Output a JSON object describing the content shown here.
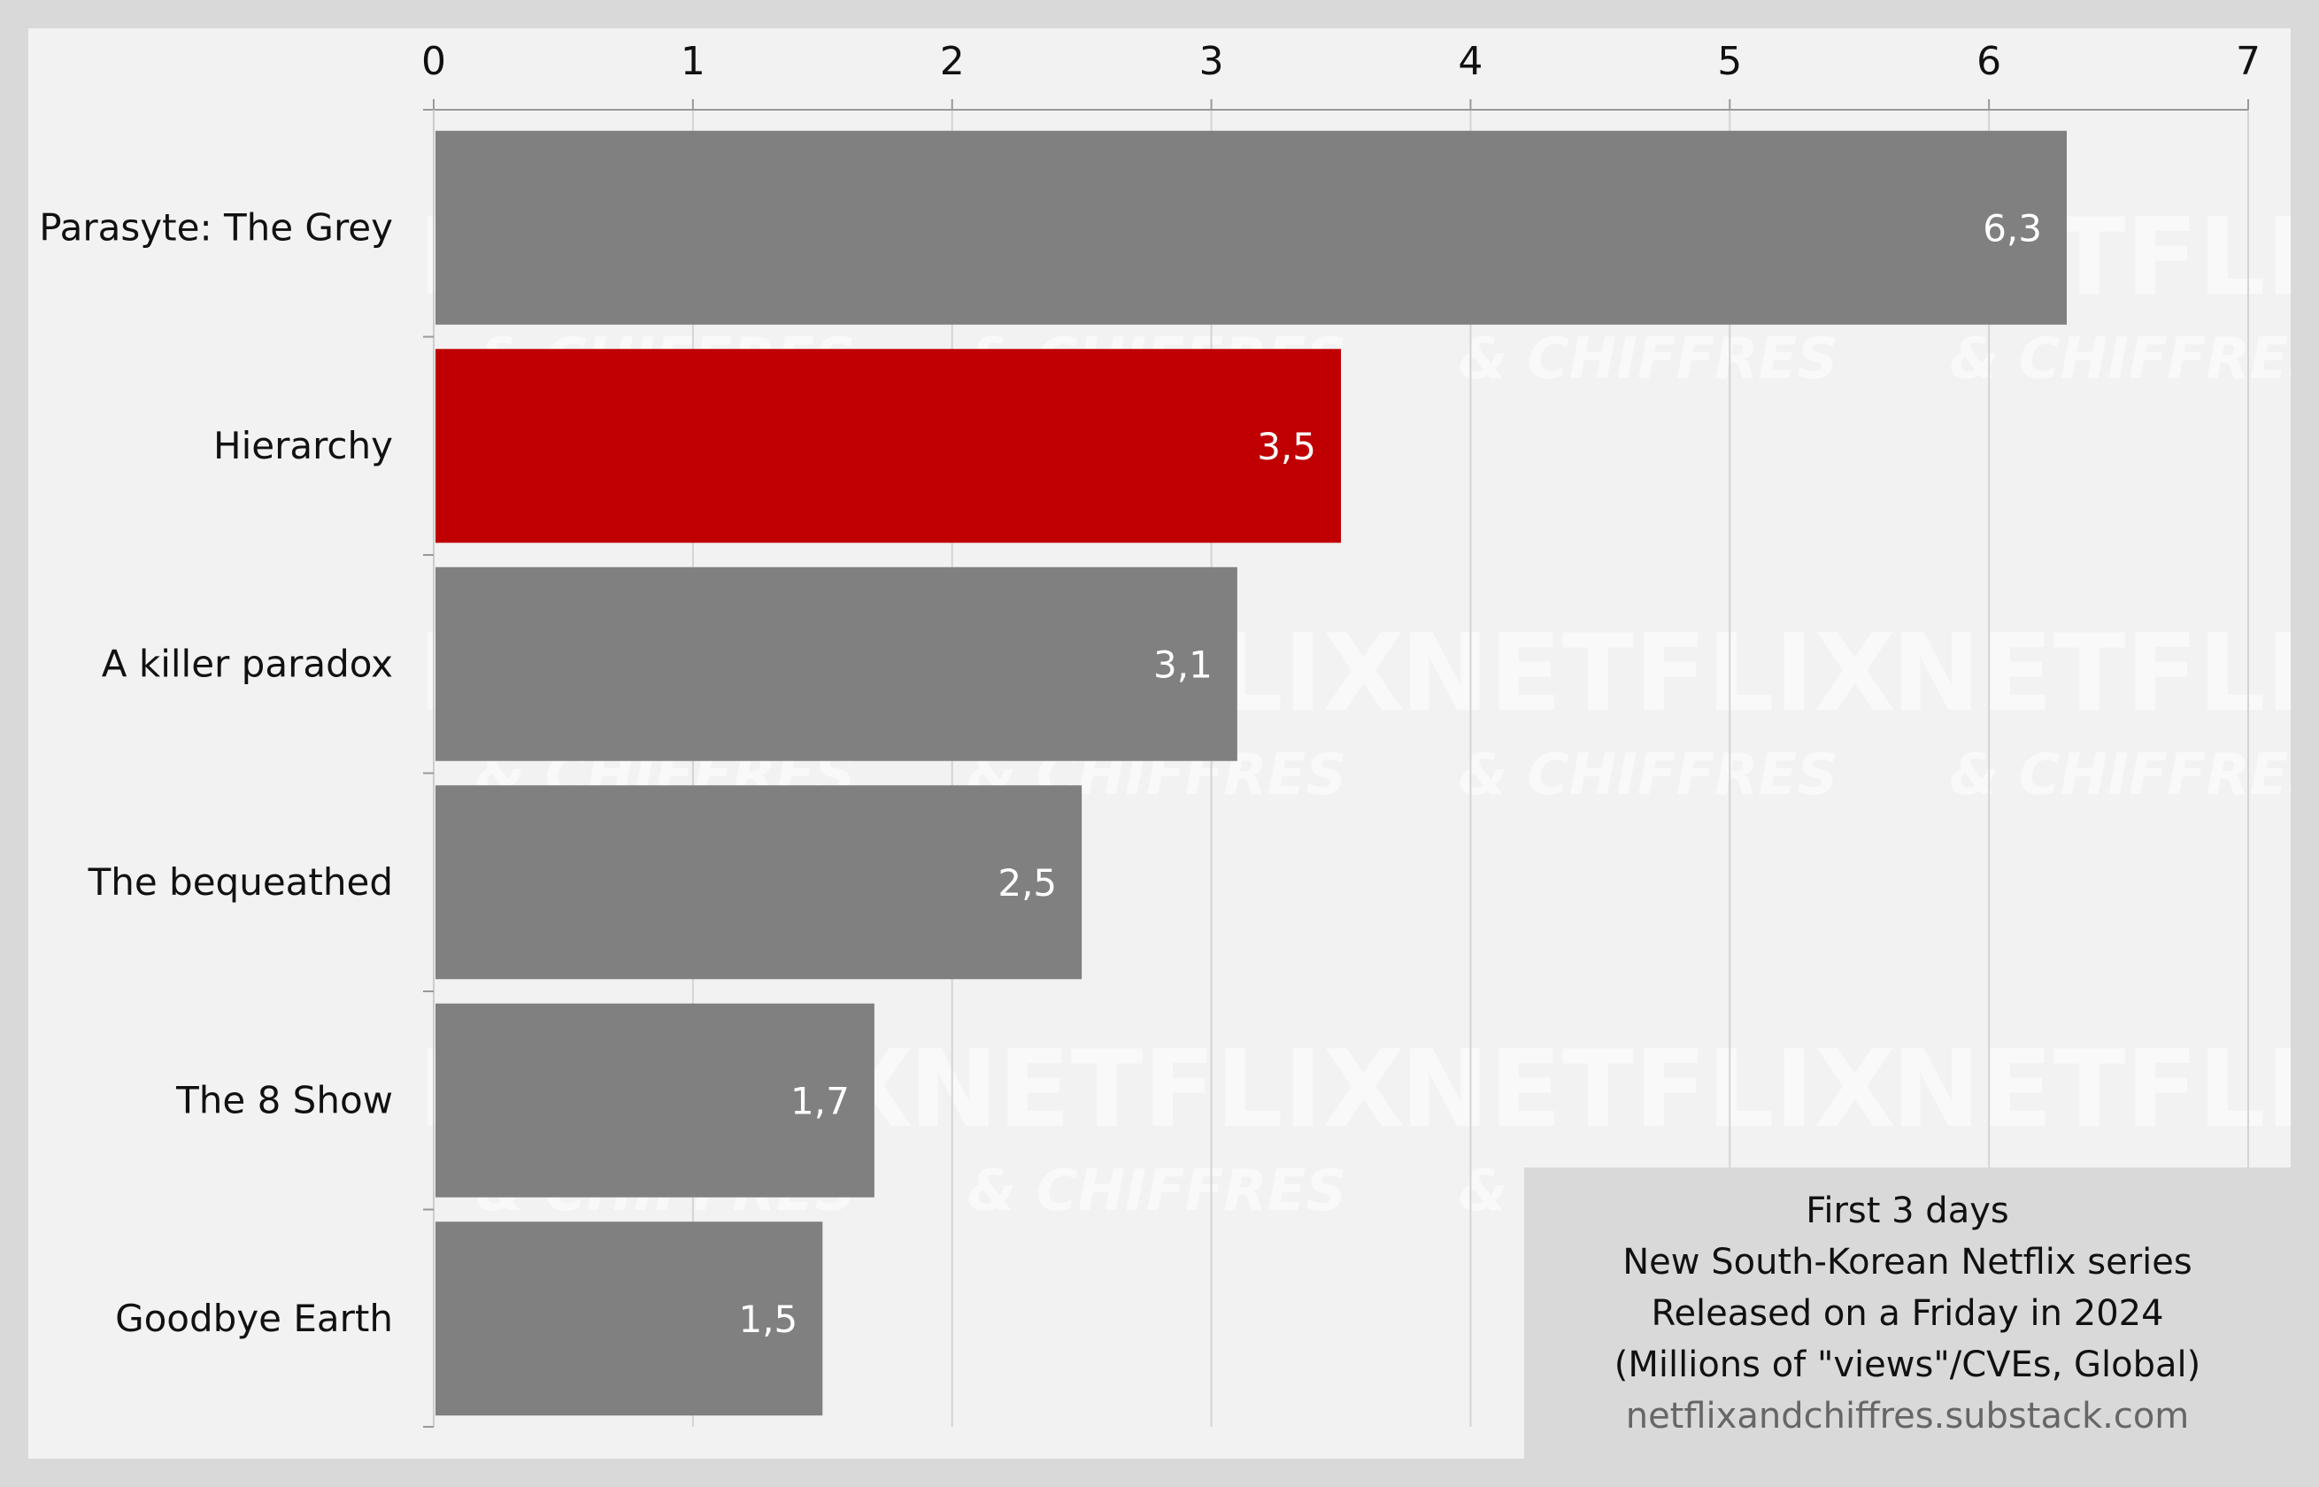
{
  "chart_data": {
    "type": "bar",
    "orientation": "horizontal",
    "categories": [
      "Parasyte: The Grey",
      "Hierarchy",
      "A killer paradox",
      "The bequeathed",
      "The 8 Show",
      "Goodbye Earth"
    ],
    "values": [
      6.3,
      3.5,
      3.1,
      2.5,
      1.7,
      1.5
    ],
    "value_labels": [
      "6,3",
      "3,5",
      "3,1",
      "2,5",
      "1,7",
      "1,5"
    ],
    "x_ticks": [
      "0",
      "1",
      "2",
      "3",
      "4",
      "5",
      "6",
      "7"
    ],
    "xlim": [
      0,
      7
    ],
    "x_axis_position": "top",
    "grid": "vertical",
    "highlight_category": "Hierarchy",
    "colors": {
      "default": "#808080",
      "highlight": "#c00000"
    },
    "watermark": {
      "line1": "NETFLIX",
      "line2": "& CHIFFRES"
    }
  },
  "caption": {
    "lines": [
      "First 3 days",
      "New South-Korean Netflix series",
      "Released on a Friday in 2024",
      "(Millions of \"views\"/CVEs, Global)"
    ],
    "source": "netflixandchiffres.substack.com"
  }
}
